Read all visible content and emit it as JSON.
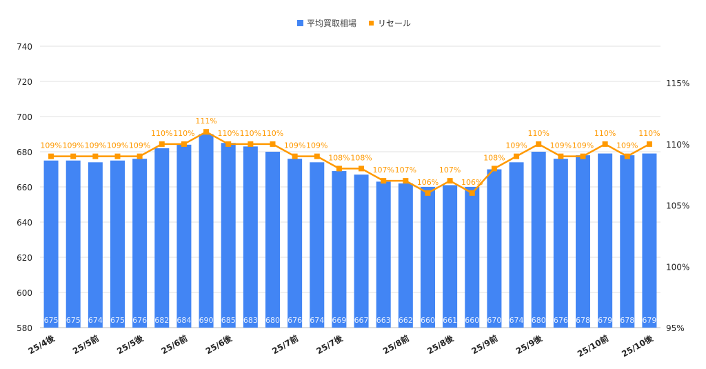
{
  "chart_data": {
    "type": "bar+line",
    "legend_position": "top",
    "grid": true,
    "categories": [
      "25/4後",
      "",
      "25/5前",
      "",
      "25/5後",
      "",
      "25/6前",
      "",
      "25/6後",
      "",
      "",
      "25/7前",
      "",
      "25/7後",
      "",
      "",
      "25/8前",
      "",
      "25/8後",
      "",
      "25/9前",
      "",
      "25/9後",
      "",
      "",
      "25/10前",
      "",
      "25/10後"
    ],
    "series": [
      {
        "name": "平均買取相場",
        "type": "bar",
        "axis": "left",
        "color": "#4285f4",
        "values": [
          675,
          675,
          674,
          675,
          676,
          682,
          684,
          690,
          685,
          683,
          680,
          676,
          674,
          669,
          667,
          663,
          662,
          660,
          661,
          660,
          670,
          674,
          680,
          676,
          678,
          679,
          678,
          679
        ]
      },
      {
        "name": "リセール",
        "type": "line",
        "axis": "right",
        "color": "#ff9900",
        "values": [
          109,
          109,
          109,
          109,
          109,
          110,
          110,
          111,
          110,
          110,
          110,
          109,
          109,
          108,
          108,
          107,
          107,
          106,
          107,
          106,
          108,
          109,
          110,
          109,
          109,
          110,
          109,
          110
        ],
        "label_suffix": "%"
      }
    ],
    "left_axis": {
      "ylim": [
        580,
        740
      ],
      "ticks": [
        "580",
        "600",
        "620",
        "640",
        "660",
        "680",
        "700",
        "720",
        "740"
      ]
    },
    "right_axis": {
      "ylim": [
        95,
        118
      ],
      "ticks": [
        "95%",
        "100%",
        "105%",
        "110%",
        "115%"
      ],
      "tick_values": [
        95,
        100,
        105,
        110,
        115
      ]
    }
  }
}
